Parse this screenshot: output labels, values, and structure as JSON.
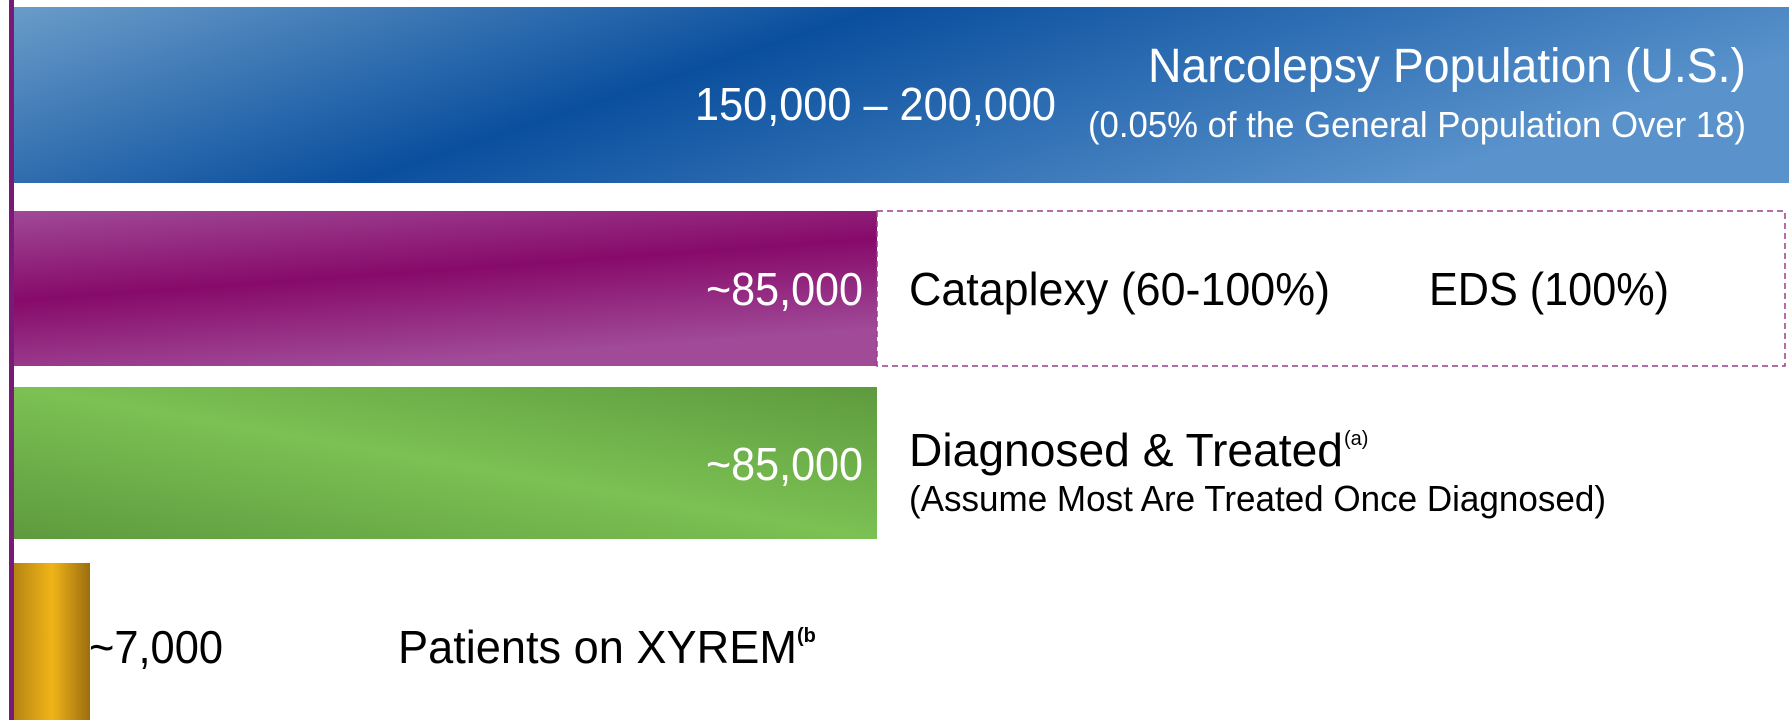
{
  "rows": [
    {
      "value": "150,000 – 200,000",
      "label": "Narcolepsy Population (U.S.)",
      "sublabel": "(0.05% of the General Population Over 18)"
    },
    {
      "value": "~85,000",
      "label": "Cataplexy (60-100%)",
      "label2": "EDS (100%)"
    },
    {
      "value": "~85,000",
      "label": "Diagnosed & Treated",
      "note": "(a)",
      "sublabel": "(Assume Most Are Treated Once Diagnosed)"
    },
    {
      "value": "~7,000",
      "label": "Patients on XYREM",
      "note": "(b"
    }
  ]
}
